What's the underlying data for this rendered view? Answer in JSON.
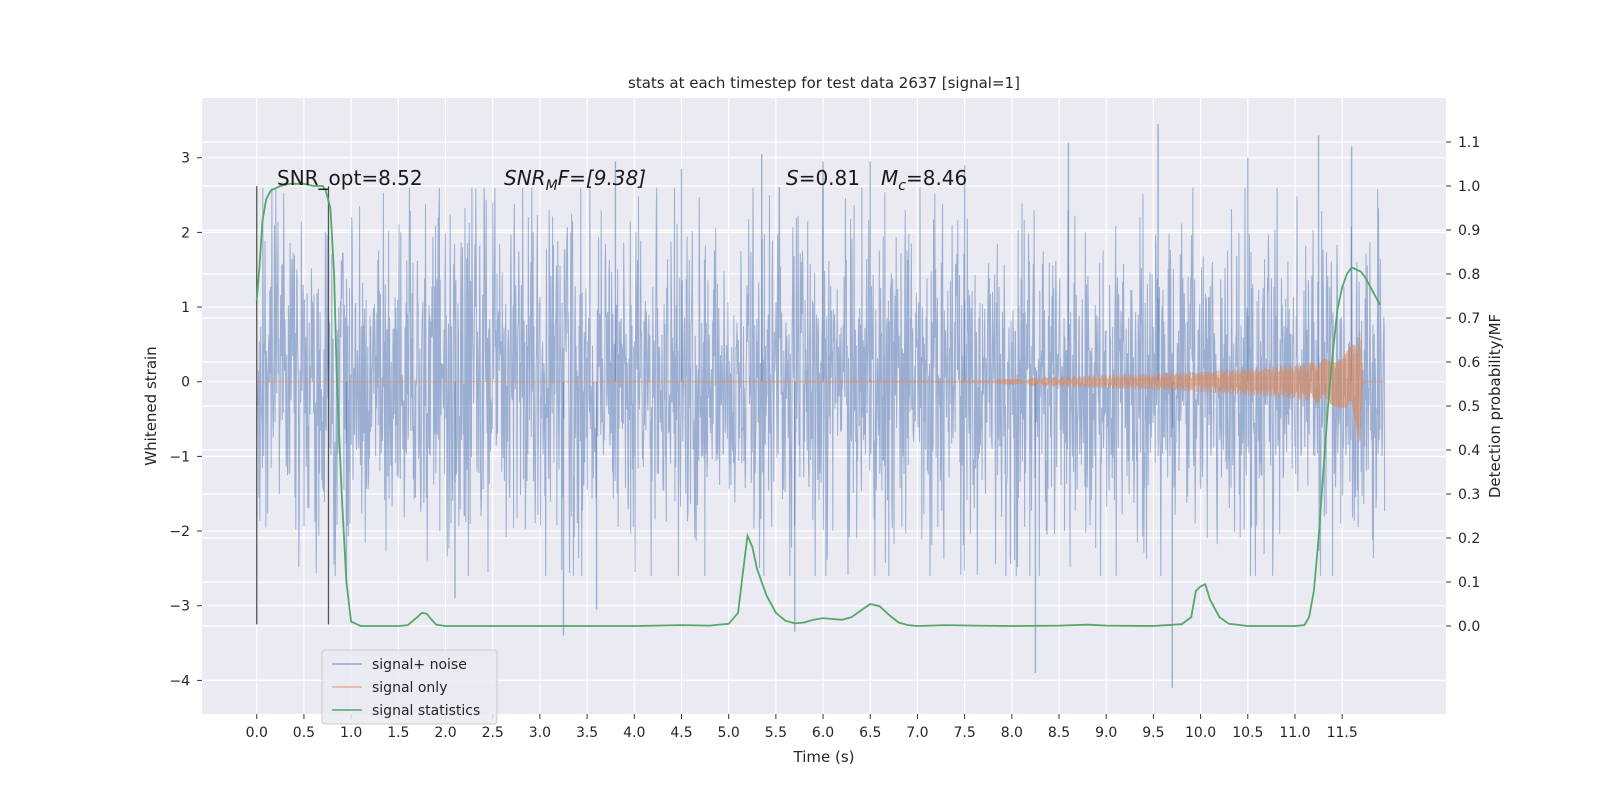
{
  "chart_data": {
    "type": "line",
    "title": "stats at each timestep for test data 2637 [signal=1]",
    "xlabel": "Time (s)",
    "ylabel": "Whitened strain",
    "ylabel_right": "Detection probability/MF",
    "xlim": [
      -0.58,
      12.6
    ],
    "ylim": [
      -4.45,
      3.8
    ],
    "ylim_right": [
      -0.2,
      1.2
    ],
    "grid": true,
    "x_ticks": [
      "0.0",
      "0.5",
      "1.0",
      "1.5",
      "2.0",
      "2.5",
      "3.0",
      "3.5",
      "4.0",
      "4.5",
      "5.0",
      "5.5",
      "6.0",
      "6.5",
      "7.0",
      "7.5",
      "8.0",
      "8.5",
      "9.0",
      "9.5",
      "10.0",
      "10.5",
      "11.0",
      "11.5"
    ],
    "y_ticks": [
      "3",
      "2",
      "1",
      "0",
      "−1",
      "−2",
      "−3",
      "−4"
    ],
    "y_tick_values": [
      3,
      2,
      1,
      0,
      -1,
      -2,
      -3,
      -4
    ],
    "y_ticks_right": [
      "1.1",
      "1.0",
      "0.9",
      "0.8",
      "0.7",
      "0.6",
      "0.5",
      "0.4",
      "0.3",
      "0.2",
      "0.1",
      "0.0"
    ],
    "y_tick_values_right": [
      1.1,
      1.0,
      0.9,
      0.8,
      0.7,
      0.6,
      0.5,
      0.4,
      0.3,
      0.2,
      0.1,
      0.0
    ],
    "annotations": {
      "snr_opt": "SNR_opt=8.52",
      "snr_mf_main": "SNR",
      "snr_mf_sub": "M",
      "snr_mf_rest": "F=[9.38]",
      "s_main": "S",
      "s_value": "=0.81",
      "mc_main": "M",
      "mc_sub": "c",
      "mc_value": "=8.46"
    },
    "vertical_markers": [
      0.0,
      0.76
    ],
    "legend": {
      "placement": "lower-left",
      "entries": [
        "signal+ noise",
        "signal only",
        "signal statistics"
      ]
    },
    "series": [
      {
        "name": "signal+ noise",
        "color": "#4c72b0",
        "description_values": "white noise, x from 0 to 11.95 s, envelope approximately ±1.5 with peaks between -4.1 and 3.45",
        "x_range": [
          0.0,
          11.95
        ],
        "typical_amplitude": 1.5,
        "peaks": [
          [
            0.95,
            -2.7
          ],
          [
            2.1,
            -2.9
          ],
          [
            3.25,
            -3.4
          ],
          [
            3.6,
            -3.05
          ],
          [
            5.7,
            -3.35
          ],
          [
            8.25,
            -3.9
          ],
          [
            9.7,
            -4.1
          ],
          [
            8.6,
            3.2
          ],
          [
            9.55,
            3.45
          ],
          [
            10.5,
            3.0
          ],
          [
            11.25,
            3.3
          ],
          [
            11.6,
            3.15
          ],
          [
            3.8,
            2.95
          ],
          [
            4.5,
            2.85
          ],
          [
            5.35,
            3.05
          ],
          [
            6.0,
            2.95
          ],
          [
            6.5,
            2.95
          ],
          [
            7.5,
            2.9
          ]
        ]
      },
      {
        "name": "signal only",
        "color": "#dd8452",
        "description_values": "chirp waveform, amplitude near 0 until ~7.5 s, growing to ~±0.6 near 11.6 s then ringdown to 0 at 11.72 s",
        "envelope": [
          [
            0.0,
            0.0
          ],
          [
            7.5,
            0.005
          ],
          [
            8.0,
            0.04
          ],
          [
            8.5,
            0.07
          ],
          [
            9.0,
            0.09
          ],
          [
            9.5,
            0.11
          ],
          [
            10.0,
            0.14
          ],
          [
            10.5,
            0.18
          ],
          [
            11.0,
            0.23
          ],
          [
            11.3,
            0.3
          ],
          [
            11.5,
            0.38
          ],
          [
            11.6,
            0.48
          ],
          [
            11.66,
            0.65
          ],
          [
            11.69,
            0.9
          ],
          [
            11.72,
            0.0
          ]
        ]
      },
      {
        "name": "signal statistics",
        "color": "#55a868",
        "axis": "right",
        "x": [
          0.0,
          0.03,
          0.06,
          0.1,
          0.15,
          0.25,
          0.35,
          0.5,
          0.6,
          0.7,
          0.73,
          0.78,
          0.82,
          0.85,
          0.9,
          0.95,
          1.0,
          1.1,
          1.3,
          1.5,
          1.6,
          1.7,
          1.75,
          1.8,
          1.85,
          1.9,
          2.0,
          2.2,
          2.5,
          3.0,
          3.5,
          4.0,
          4.5,
          4.8,
          5.0,
          5.1,
          5.15,
          5.2,
          5.25,
          5.3,
          5.4,
          5.5,
          5.6,
          5.7,
          5.8,
          5.9,
          6.0,
          6.1,
          6.2,
          6.3,
          6.4,
          6.5,
          6.6,
          6.7,
          6.8,
          6.9,
          7.0,
          7.3,
          7.6,
          8.0,
          8.5,
          8.8,
          9.0,
          9.5,
          9.8,
          9.9,
          9.95,
          10.0,
          10.05,
          10.1,
          10.2,
          10.3,
          10.5,
          10.8,
          11.0,
          11.1,
          11.15,
          11.2,
          11.25,
          11.3,
          11.35,
          11.4,
          11.45,
          11.5,
          11.55,
          11.6,
          11.65,
          11.7,
          11.75,
          11.8,
          11.85,
          11.9
        ],
        "values": [
          0.74,
          0.82,
          0.92,
          0.97,
          0.99,
          1.0,
          1.005,
          1.005,
          1.0,
          1.0,
          0.99,
          0.95,
          0.8,
          0.55,
          0.3,
          0.1,
          0.01,
          0.0,
          0.0,
          0.0,
          0.002,
          0.02,
          0.03,
          0.028,
          0.015,
          0.003,
          0.0,
          0.0,
          0.0,
          0.0,
          0.0,
          0.0,
          0.002,
          0.001,
          0.005,
          0.03,
          0.12,
          0.205,
          0.18,
          0.13,
          0.07,
          0.03,
          0.012,
          0.006,
          0.008,
          0.014,
          0.018,
          0.016,
          0.014,
          0.02,
          0.035,
          0.05,
          0.045,
          0.025,
          0.008,
          0.002,
          0.0,
          0.002,
          0.001,
          0.0,
          0.001,
          0.003,
          0.001,
          0.0,
          0.004,
          0.02,
          0.08,
          0.09,
          0.095,
          0.06,
          0.02,
          0.005,
          0.0,
          0.0,
          0.0,
          0.002,
          0.02,
          0.08,
          0.2,
          0.35,
          0.5,
          0.62,
          0.72,
          0.77,
          0.8,
          0.815,
          0.81,
          0.805,
          0.79,
          0.77,
          0.75,
          0.73
        ]
      }
    ]
  }
}
